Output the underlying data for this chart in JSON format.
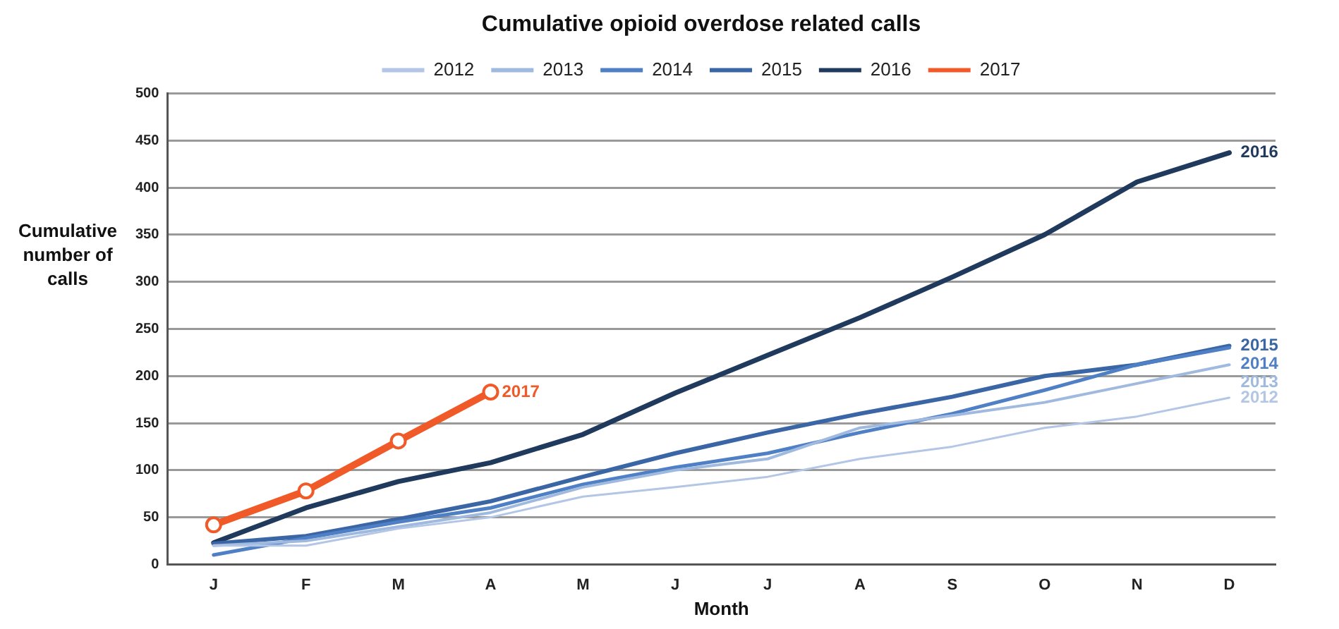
{
  "chart_data": {
    "type": "line",
    "title": "Cumulative opioid overdose related calls",
    "xlabel": "Month",
    "ylabel": "Cumulative number of calls",
    "categories": [
      "J",
      "F",
      "M",
      "A",
      "M",
      "J",
      "J",
      "A",
      "S",
      "O",
      "N",
      "D"
    ],
    "ylim": [
      0,
      500
    ],
    "yticks": [
      0,
      50,
      100,
      150,
      200,
      250,
      300,
      350,
      400,
      450,
      500
    ],
    "grid": "y",
    "legend": "top",
    "marker": "none",
    "series": [
      {
        "name": "2012",
        "color": "#b3c6e6",
        "values": [
          20,
          20,
          38,
          50,
          72,
          82,
          93,
          112,
          125,
          145,
          157,
          177
        ]
      },
      {
        "name": "2013",
        "color": "#9fb9df",
        "values": [
          20,
          25,
          40,
          55,
          82,
          100,
          112,
          145,
          158,
          172,
          192,
          212
        ]
      },
      {
        "name": "2014",
        "color": "#4f7fc4",
        "values": [
          10,
          28,
          45,
          60,
          85,
          103,
          118,
          140,
          160,
          185,
          212,
          230
        ]
      },
      {
        "name": "2015",
        "color": "#3b66a5",
        "values": [
          22,
          30,
          48,
          67,
          93,
          118,
          140,
          160,
          178,
          200,
          212,
          232
        ]
      },
      {
        "name": "2016",
        "color": "#1f3a5c",
        "values": [
          23,
          60,
          88,
          108,
          138,
          182,
          222,
          262,
          305,
          350,
          406,
          437
        ]
      },
      {
        "name": "2017",
        "color": "#f05a28",
        "marker": "circle",
        "values": [
          42,
          78,
          131,
          183,
          null,
          null,
          null,
          null,
          null,
          null,
          null,
          null
        ]
      }
    ]
  }
}
